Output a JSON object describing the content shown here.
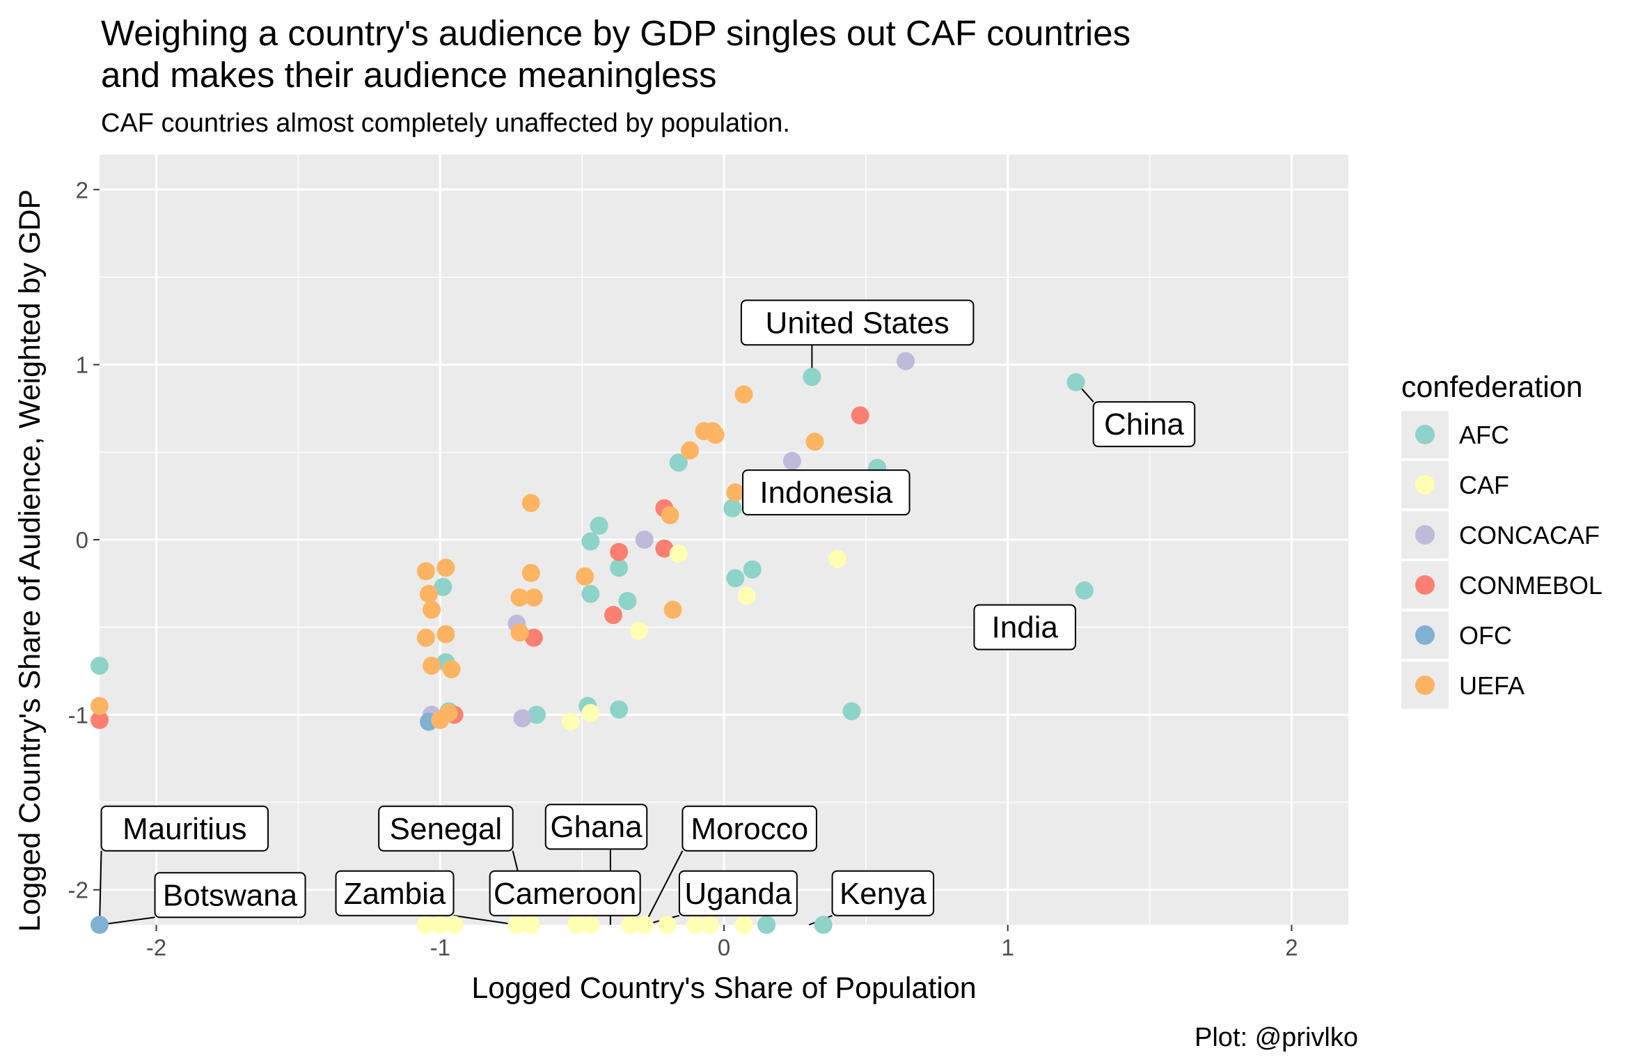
{
  "chart_data": {
    "type": "scatter",
    "title": "Weighing a country's audience by GDP singles out CAF countries\nand makes their audience meaningless",
    "subtitle": "CAF countries almost completely unaffected by population.",
    "caption": "Plot: @privlko",
    "xlabel": "Logged Country's Share of Population",
    "ylabel": "Logged Country's Share of Audience, Weighted by GDP",
    "xlim": [
      -2.2,
      2.2
    ],
    "ylim": [
      -2.2,
      2.2
    ],
    "xticks": [
      -2,
      -1,
      0,
      1,
      2
    ],
    "yticks": [
      -2,
      -1,
      0,
      1,
      2
    ],
    "grid": true,
    "legend": {
      "title": "confederation",
      "position": "right",
      "entries": [
        {
          "name": "AFC",
          "color": "#8dd3c7"
        },
        {
          "name": "CAF",
          "color": "#ffffb3"
        },
        {
          "name": "CONCACAF",
          "color": "#bebada"
        },
        {
          "name": "CONMEBOL",
          "color": "#fb8072"
        },
        {
          "name": "OFC",
          "color": "#80b1d3"
        },
        {
          "name": "UEFA",
          "color": "#fdb462"
        }
      ]
    },
    "points": [
      {
        "x": 1.24,
        "y": 0.9,
        "group": "AFC"
      },
      {
        "x": 1.27,
        "y": -0.29,
        "group": "AFC"
      },
      {
        "x": 0.31,
        "y": 0.93,
        "group": "AFC"
      },
      {
        "x": 0.54,
        "y": 0.41,
        "group": "AFC"
      },
      {
        "x": 0.45,
        "y": -0.98,
        "group": "AFC"
      },
      {
        "x": 0.03,
        "y": 0.18,
        "group": "AFC"
      },
      {
        "x": 0.04,
        "y": -0.22,
        "group": "AFC"
      },
      {
        "x": 0.1,
        "y": -0.17,
        "group": "AFC"
      },
      {
        "x": -0.16,
        "y": 0.44,
        "group": "AFC"
      },
      {
        "x": -0.44,
        "y": 0.08,
        "group": "AFC"
      },
      {
        "x": -0.47,
        "y": -0.01,
        "group": "AFC"
      },
      {
        "x": -0.37,
        "y": -0.16,
        "group": "AFC"
      },
      {
        "x": -0.47,
        "y": -0.31,
        "group": "AFC"
      },
      {
        "x": -0.34,
        "y": -0.35,
        "group": "AFC"
      },
      {
        "x": -0.37,
        "y": -0.97,
        "group": "AFC"
      },
      {
        "x": -0.48,
        "y": -0.95,
        "group": "AFC"
      },
      {
        "x": -0.66,
        "y": -1.0,
        "group": "AFC"
      },
      {
        "x": -0.99,
        "y": -0.27,
        "group": "AFC"
      },
      {
        "x": -0.98,
        "y": -0.7,
        "group": "AFC"
      },
      {
        "x": -0.97,
        "y": -0.98,
        "group": "AFC"
      },
      {
        "x": -2.2,
        "y": -0.72,
        "group": "AFC"
      },
      {
        "x": 0.15,
        "y": -2.2,
        "group": "AFC"
      },
      {
        "x": 0.35,
        "y": -2.2,
        "group": "AFC"
      },
      {
        "x": 0.64,
        "y": 1.02,
        "group": "CONCACAF"
      },
      {
        "x": 0.24,
        "y": 0.45,
        "group": "CONCACAF"
      },
      {
        "x": -0.28,
        "y": 0.0,
        "group": "CONCACAF"
      },
      {
        "x": -0.73,
        "y": -0.48,
        "group": "CONCACAF"
      },
      {
        "x": -0.71,
        "y": -1.02,
        "group": "CONCACAF"
      },
      {
        "x": -1.03,
        "y": -1.0,
        "group": "CONCACAF"
      },
      {
        "x": 0.48,
        "y": 0.71,
        "group": "CONMEBOL"
      },
      {
        "x": -0.21,
        "y": 0.18,
        "group": "CONMEBOL"
      },
      {
        "x": -0.37,
        "y": -0.07,
        "group": "CONMEBOL"
      },
      {
        "x": -0.21,
        "y": -0.05,
        "group": "CONMEBOL"
      },
      {
        "x": -0.39,
        "y": -0.43,
        "group": "CONMEBOL"
      },
      {
        "x": -0.67,
        "y": -0.56,
        "group": "CONMEBOL"
      },
      {
        "x": -0.95,
        "y": -1.0,
        "group": "CONMEBOL"
      },
      {
        "x": -2.2,
        "y": -1.03,
        "group": "CONMEBOL"
      },
      {
        "x": -1.04,
        "y": -1.04,
        "group": "OFC"
      },
      {
        "x": -2.2,
        "y": -2.2,
        "group": "OFC"
      },
      {
        "x": 0.4,
        "y": -0.11,
        "group": "CAF"
      },
      {
        "x": 0.08,
        "y": -0.32,
        "group": "CAF"
      },
      {
        "x": -0.16,
        "y": -0.08,
        "group": "CAF"
      },
      {
        "x": -0.3,
        "y": -0.52,
        "group": "CAF"
      },
      {
        "x": -0.47,
        "y": -0.99,
        "group": "CAF"
      },
      {
        "x": -0.54,
        "y": -1.04,
        "group": "CAF"
      },
      {
        "x": -1.05,
        "y": -2.2,
        "group": "CAF"
      },
      {
        "x": -1.0,
        "y": -2.2,
        "group": "CAF"
      },
      {
        "x": -0.95,
        "y": -2.2,
        "group": "CAF"
      },
      {
        "x": -0.73,
        "y": -2.2,
        "group": "CAF"
      },
      {
        "x": -0.68,
        "y": -2.2,
        "group": "CAF"
      },
      {
        "x": -0.52,
        "y": -2.2,
        "group": "CAF"
      },
      {
        "x": -0.47,
        "y": -2.2,
        "group": "CAF"
      },
      {
        "x": -0.33,
        "y": -2.2,
        "group": "CAF"
      },
      {
        "x": -0.28,
        "y": -2.2,
        "group": "CAF"
      },
      {
        "x": -0.2,
        "y": -2.2,
        "group": "CAF"
      },
      {
        "x": -0.1,
        "y": -2.2,
        "group": "CAF"
      },
      {
        "x": -0.05,
        "y": -2.2,
        "group": "CAF"
      },
      {
        "x": 0.07,
        "y": -2.2,
        "group": "CAF"
      },
      {
        "x": 0.07,
        "y": 0.83,
        "group": "UEFA"
      },
      {
        "x": 0.32,
        "y": 0.56,
        "group": "UEFA"
      },
      {
        "x": -0.07,
        "y": 0.62,
        "group": "UEFA"
      },
      {
        "x": -0.04,
        "y": 0.62,
        "group": "UEFA"
      },
      {
        "x": -0.03,
        "y": 0.6,
        "group": "UEFA"
      },
      {
        "x": -0.12,
        "y": 0.51,
        "group": "UEFA"
      },
      {
        "x": 0.04,
        "y": 0.27,
        "group": "UEFA"
      },
      {
        "x": -0.19,
        "y": 0.14,
        "group": "UEFA"
      },
      {
        "x": -0.68,
        "y": 0.21,
        "group": "UEFA"
      },
      {
        "x": -0.49,
        "y": -0.21,
        "group": "UEFA"
      },
      {
        "x": -0.68,
        "y": -0.19,
        "group": "UEFA"
      },
      {
        "x": -0.72,
        "y": -0.33,
        "group": "UEFA"
      },
      {
        "x": -0.67,
        "y": -0.33,
        "group": "UEFA"
      },
      {
        "x": -0.18,
        "y": -0.4,
        "group": "UEFA"
      },
      {
        "x": -0.72,
        "y": -0.53,
        "group": "UEFA"
      },
      {
        "x": -1.05,
        "y": -0.18,
        "group": "UEFA"
      },
      {
        "x": -0.98,
        "y": -0.16,
        "group": "UEFA"
      },
      {
        "x": -1.04,
        "y": -0.31,
        "group": "UEFA"
      },
      {
        "x": -1.03,
        "y": -0.4,
        "group": "UEFA"
      },
      {
        "x": -1.05,
        "y": -0.56,
        "group": "UEFA"
      },
      {
        "x": -0.98,
        "y": -0.54,
        "group": "UEFA"
      },
      {
        "x": -1.03,
        "y": -0.72,
        "group": "UEFA"
      },
      {
        "x": -0.96,
        "y": -0.74,
        "group": "UEFA"
      },
      {
        "x": -1.0,
        "y": -1.03,
        "group": "UEFA"
      },
      {
        "x": -0.97,
        "y": -0.99,
        "group": "UEFA"
      },
      {
        "x": -2.2,
        "y": -0.95,
        "group": "UEFA"
      }
    ],
    "annotations": [
      {
        "text": "United States",
        "x": 0.47,
        "y": 1.24,
        "point_x": 0.31,
        "point_y": 0.93
      },
      {
        "text": "China",
        "x": 1.48,
        "y": 0.66,
        "point_x": 1.24,
        "point_y": 0.9
      },
      {
        "text": "Indonesia",
        "x": 0.36,
        "y": 0.27,
        "point_x": 0.04,
        "point_y": 0.27
      },
      {
        "text": "India",
        "x": 1.06,
        "y": -0.5,
        "point_x": 1.27,
        "point_y": -0.29
      },
      {
        "text": "Mauritius",
        "x": -1.9,
        "y": -1.65,
        "point_x": -2.2,
        "point_y": -2.2
      },
      {
        "text": "Botswana",
        "x": -1.74,
        "y": -2.03,
        "point_x": -2.2,
        "point_y": -2.2
      },
      {
        "text": "Senegal",
        "x": -0.98,
        "y": -1.65,
        "point_x": -0.68,
        "point_y": -2.2
      },
      {
        "text": "Zambia",
        "x": -1.16,
        "y": -2.02,
        "point_x": -0.73,
        "point_y": -2.2
      },
      {
        "text": "Ghana",
        "x": -0.45,
        "y": -1.64,
        "point_x": -0.4,
        "point_y": -2.2
      },
      {
        "text": "Cameroon",
        "x": -0.56,
        "y": -2.02,
        "point_x": -0.4,
        "point_y": -2.2
      },
      {
        "text": "Morocco",
        "x": 0.09,
        "y": -1.65,
        "point_x": -0.28,
        "point_y": -2.2
      },
      {
        "text": "Uganda",
        "x": 0.05,
        "y": -2.02,
        "point_x": -0.28,
        "point_y": -2.2
      },
      {
        "text": "Kenya",
        "x": 0.56,
        "y": -2.02,
        "point_x": 0.3,
        "point_y": -2.2
      }
    ]
  }
}
